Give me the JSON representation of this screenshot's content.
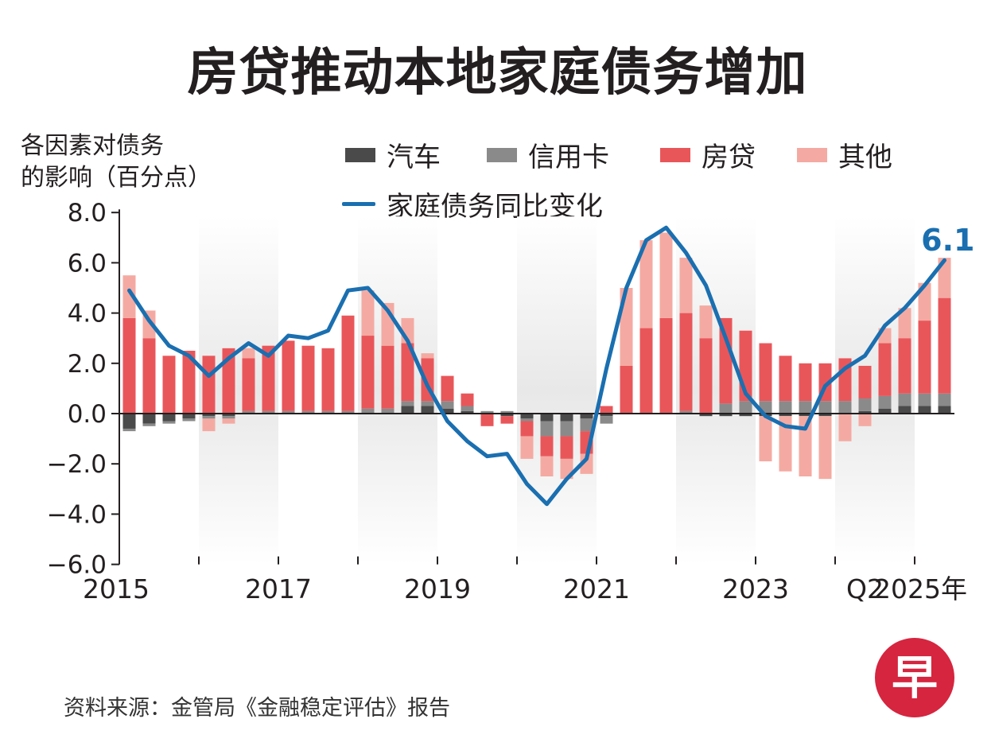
{
  "title": "房贷推动本地家庭债务增加",
  "y_axis_title": [
    "各因素对债务",
    "的影响（百分点）"
  ],
  "source": "资料来源：金管局《金融稳定评估》报告",
  "logo_text": "早",
  "colors": {
    "car": "#4a4a4a",
    "credit": "#8a8a8a",
    "mortgage": "#e9565a",
    "other": "#f4aaa2",
    "line": "#1a6fb0",
    "band": "#e8e8e8",
    "logo": "#d6253f"
  },
  "chart_data": {
    "type": "bar",
    "stacked": true,
    "title": "房贷推动本地家庭债务增加",
    "ylabel": "各因素对债务的影响（百分点）",
    "ylim": [
      -6.0,
      8.0
    ],
    "yticks": [
      8.0,
      6.0,
      4.0,
      2.0,
      0.0,
      -2.0,
      -4.0,
      -6.0
    ],
    "ytick_labels": [
      "8.0",
      "6.0",
      "4.0",
      "2.0",
      "0.0",
      "−2.0",
      "−4.0",
      "−6.0"
    ],
    "x_labels": [
      {
        "text": "2015",
        "index": 0
      },
      {
        "text": "2017",
        "index": 8
      },
      {
        "text": "2019",
        "index": 16
      },
      {
        "text": "2021",
        "index": 24
      },
      {
        "text": "2023",
        "index": 32
      },
      {
        "text": "Q2",
        "index": 37.5
      },
      {
        "text": "2025年",
        "index": 40.3
      }
    ],
    "shaded_years": [
      2016,
      2018,
      2020,
      2022,
      2024
    ],
    "categories": [
      "2015Q1",
      "2015Q2",
      "2015Q3",
      "2015Q4",
      "2016Q1",
      "2016Q2",
      "2016Q3",
      "2016Q4",
      "2017Q1",
      "2017Q2",
      "2017Q3",
      "2017Q4",
      "2018Q1",
      "2018Q2",
      "2018Q3",
      "2018Q4",
      "2019Q1",
      "2019Q2",
      "2019Q3",
      "2019Q4",
      "2020Q1",
      "2020Q2",
      "2020Q3",
      "2020Q4",
      "2021Q1",
      "2021Q2",
      "2021Q3",
      "2021Q4",
      "2022Q1",
      "2022Q2",
      "2022Q3",
      "2022Q4",
      "2023Q1",
      "2023Q2",
      "2023Q3",
      "2023Q4",
      "2024Q1",
      "2024Q2",
      "2024Q3",
      "2024Q4",
      "2025Q1",
      "2025Q2"
    ],
    "series": [
      {
        "name": "汽车",
        "values": [
          -0.6,
          -0.4,
          -0.3,
          -0.2,
          -0.1,
          -0.1,
          0.0,
          0.0,
          0.0,
          0.0,
          0.0,
          0.0,
          0.0,
          0.0,
          0.3,
          0.3,
          0.2,
          0.1,
          0.0,
          -0.1,
          -0.2,
          -0.3,
          -0.3,
          -0.2,
          -0.1,
          0.0,
          0.0,
          0.0,
          0.0,
          -0.1,
          -0.1,
          -0.1,
          -0.1,
          -0.1,
          -0.1,
          -0.1,
          0.0,
          0.1,
          0.2,
          0.3,
          0.3,
          0.3
        ]
      },
      {
        "name": "信用卡",
        "values": [
          -0.1,
          -0.1,
          -0.1,
          -0.1,
          -0.1,
          -0.1,
          0.1,
          0.1,
          0.1,
          0.1,
          0.1,
          0.1,
          0.2,
          0.2,
          0.2,
          0.2,
          0.3,
          0.2,
          0.1,
          0.1,
          -0.1,
          -0.6,
          -0.6,
          -0.5,
          -0.3,
          0.0,
          0.0,
          0.0,
          0.1,
          0.0,
          0.4,
          0.5,
          0.5,
          0.5,
          0.5,
          0.5,
          0.5,
          0.5,
          0.5,
          0.5,
          0.5,
          0.5
        ]
      },
      {
        "name": "房贷",
        "values": [
          3.8,
          3.0,
          2.3,
          2.5,
          2.3,
          2.6,
          2.1,
          2.6,
          2.8,
          2.6,
          2.5,
          3.8,
          2.9,
          2.5,
          2.3,
          1.7,
          1.0,
          0.5,
          -0.5,
          -0.3,
          -0.6,
          -0.8,
          -0.9,
          -0.9,
          0.3,
          1.9,
          3.4,
          3.8,
          3.9,
          3.0,
          3.4,
          2.8,
          2.3,
          1.8,
          1.5,
          1.5,
          1.7,
          1.3,
          2.1,
          2.2,
          2.9,
          3.8
        ]
      },
      {
        "name": "其他",
        "values": [
          1.7,
          1.1,
          0.0,
          0.0,
          -0.5,
          -0.2,
          0.4,
          0.0,
          0.0,
          0.0,
          0.0,
          0.0,
          1.8,
          1.7,
          1.0,
          0.2,
          0.0,
          0.0,
          0.0,
          0.0,
          -0.9,
          -0.8,
          -0.8,
          -0.8,
          0.0,
          3.1,
          3.5,
          3.4,
          2.2,
          1.3,
          0.0,
          0.0,
          -1.8,
          -2.2,
          -2.4,
          -2.5,
          -1.1,
          -0.5,
          0.6,
          1.2,
          1.5,
          1.6
        ]
      }
    ],
    "line_series": {
      "name": "家庭债务同比变化",
      "values": [
        4.9,
        3.7,
        2.7,
        2.3,
        1.5,
        2.2,
        2.8,
        2.3,
        3.1,
        3.0,
        3.3,
        4.9,
        5.0,
        4.1,
        2.9,
        1.1,
        -0.3,
        -1.1,
        -1.7,
        -1.6,
        -2.8,
        -3.6,
        -2.6,
        -1.8,
        1.8,
        5.0,
        6.9,
        7.4,
        6.4,
        5.1,
        3.0,
        0.8,
        -0.1,
        -0.5,
        -0.6,
        1.1,
        1.8,
        2.3,
        3.5,
        4.2,
        5.1,
        6.1
      ]
    },
    "annotation": {
      "text": "6.1",
      "value": 6.1
    }
  }
}
